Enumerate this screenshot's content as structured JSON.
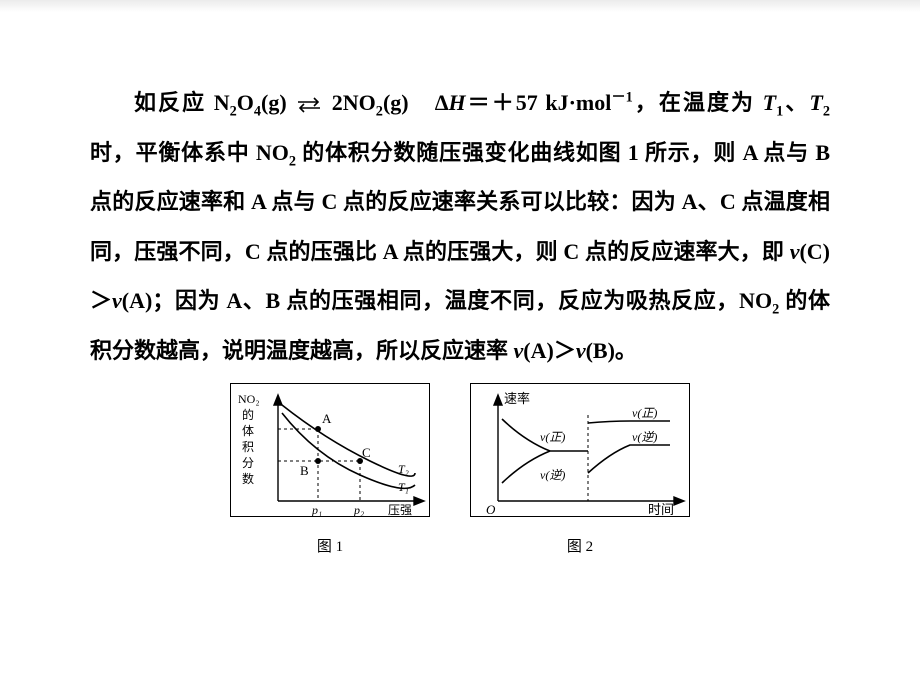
{
  "paragraph": {
    "parts": [
      "如反应 N",
      {
        "sub": "2"
      },
      "O",
      {
        "sub": "4"
      },
      "(g) ",
      {
        "icon": "equilibrium-arrow"
      },
      " 2NO",
      {
        "sub": "2"
      },
      "(g)　Δ",
      {
        "i": "H"
      },
      "＝＋57 kJ·mol",
      {
        "sup": "－1"
      },
      "，在温度为 ",
      {
        "i": "T"
      },
      {
        "sub": "1"
      },
      "、",
      {
        "i": "T"
      },
      {
        "sub": "2"
      },
      " 时，平衡体系中 NO",
      {
        "sub": "2"
      },
      " 的体积分数随压强变化曲线如图 1 所示，则 A 点与 B 点的反应速率和 A 点与 C 点的反应速率关系可以比较：因为 A、C 点温度相同，压强不同，C 点的压强比 A 点的压强大，则 C 点的反应速率大，即 ",
      {
        "i": "v"
      },
      "(C)＞",
      {
        "i": "v"
      },
      "(A)；因为 A、B 点的压强相同，温度不同，反应为吸热反应，NO",
      {
        "sub": "2"
      },
      " 的体积分数越高，说明温度越高，所以反应速率 ",
      {
        "i": "v"
      },
      "(A)＞",
      {
        "i": "v"
      },
      "(B)。"
    ]
  },
  "figure1": {
    "caption": "图 1",
    "axis_color": "#000000",
    "curve_color": "#000000",
    "dash_color": "#000000",
    "point_fill": "#000000",
    "y_label_lines": [
      "NO₂",
      "的",
      "体",
      "积",
      "分",
      "数"
    ],
    "x_label": "压强",
    "x_ticks": [
      "p₁",
      "p₂"
    ],
    "curve_labels": [
      "T₂",
      "T₁"
    ],
    "points": [
      "A",
      "B",
      "C"
    ]
  },
  "figure2": {
    "caption": "图 2",
    "axis_color": "#000000",
    "curve_color": "#000000",
    "dash_color": "#000000",
    "y_label": "速率",
    "x_label": "时间",
    "origin_label": "O",
    "labels_left": [
      "v(正)",
      "v(逆)"
    ],
    "labels_right": [
      "v(正)",
      "v(逆)"
    ]
  },
  "colors": {
    "text": "#000000",
    "background": "#ffffff"
  }
}
